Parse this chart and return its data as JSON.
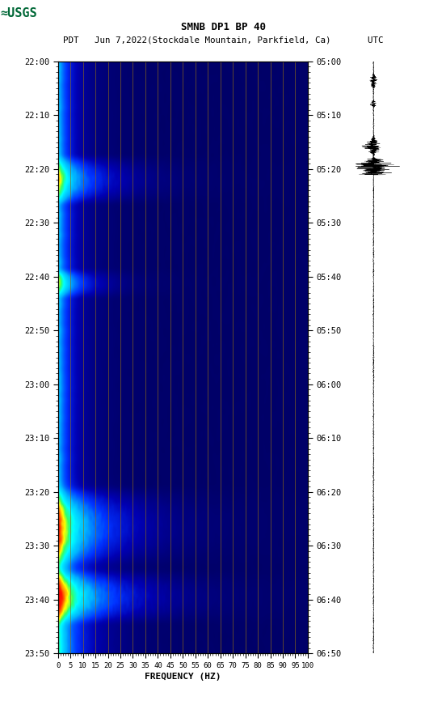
{
  "title_line1": "SMNB DP1 BP 40",
  "title_line2": "PDT   Jun 7,2022(Stockdale Mountain, Parkfield, Ca)       UTC",
  "xlabel": "FREQUENCY (HZ)",
  "freq_ticks": [
    0,
    5,
    10,
    15,
    20,
    25,
    30,
    35,
    40,
    45,
    50,
    55,
    60,
    65,
    70,
    75,
    80,
    85,
    90,
    95,
    100
  ],
  "time_labels_left": [
    "22:00",
    "22:10",
    "22:20",
    "22:30",
    "22:40",
    "22:50",
    "23:00",
    "23:10",
    "23:20",
    "23:30",
    "23:40",
    "23:50"
  ],
  "time_labels_right": [
    "05:00",
    "05:10",
    "05:20",
    "05:30",
    "05:40",
    "05:50",
    "06:00",
    "06:10",
    "06:20",
    "06:30",
    "06:40",
    "06:50"
  ],
  "n_time": 600,
  "n_freq": 500,
  "freq_max": 100,
  "background_color": "#ffffff",
  "vertical_line_color": "#8B6914",
  "fig_width": 5.52,
  "fig_height": 8.92,
  "dpi": 100,
  "usgs_green": "#006837"
}
